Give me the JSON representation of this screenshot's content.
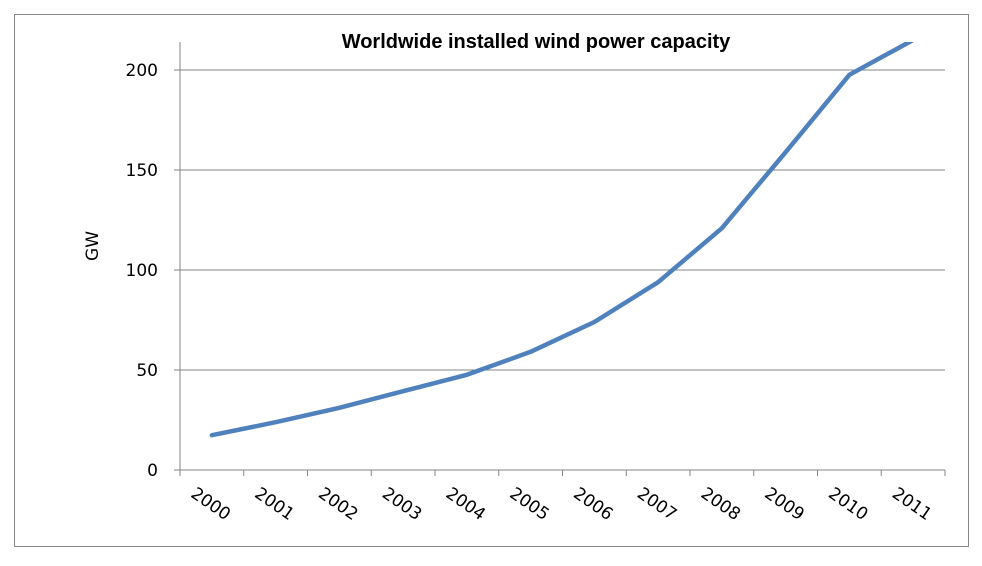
{
  "chart_data": {
    "type": "line",
    "title": "Worldwide installed wind power capacity",
    "xlabel": "",
    "ylabel": "GW",
    "categories": [
      "2000",
      "2001",
      "2002",
      "2003",
      "2004",
      "2005",
      "2006",
      "2007",
      "2008",
      "2009",
      "2010",
      "2011"
    ],
    "ylim": [
      0,
      215
    ],
    "yticks": [
      0,
      50,
      100,
      150,
      200
    ],
    "grid": true,
    "legend": "none",
    "series": [
      {
        "color": "#4F81BD",
        "values": [
          17.4,
          23.9,
          31.1,
          39.4,
          47.6,
          59.1,
          74.0,
          93.9,
          120.9,
          158.9,
          197.6,
          215
        ]
      }
    ]
  }
}
